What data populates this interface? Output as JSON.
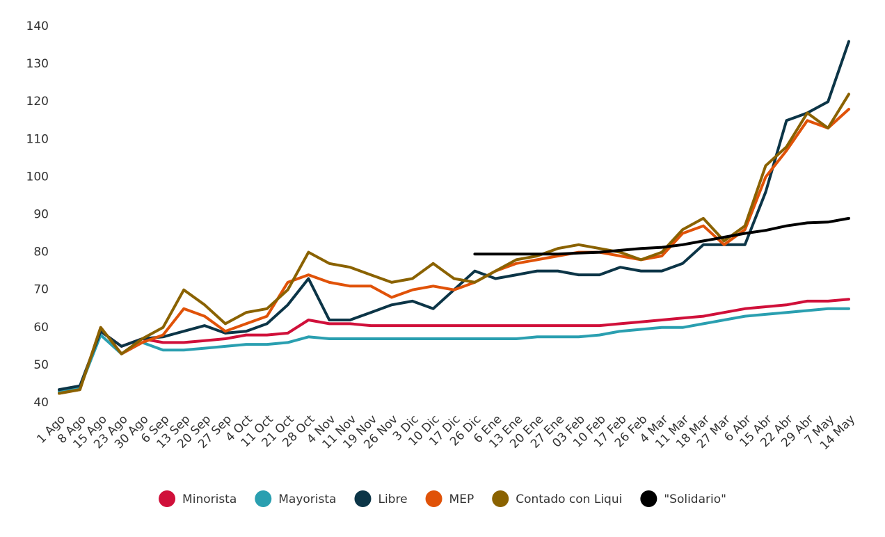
{
  "chart_data": {
    "type": "line",
    "categories": [
      "1 Ago",
      "8 Ago",
      "15 Ago",
      "23 Ago",
      "30 Ago",
      "6 Sep",
      "13 Sep",
      "20 Sep",
      "27 Sep",
      "4 Oct",
      "11 Oct",
      "21 Oct",
      "28 Oct",
      "4 Nov",
      "11 Nov",
      "19 Nov",
      "26 Nov",
      "3 Dic",
      "10 Dic",
      "17 Dic",
      "26 Dic",
      "6 Ene",
      "13 Ene",
      "20 Ene",
      "27 Ene",
      "03 Feb",
      "10 Feb",
      "17 Feb",
      "26 Feb",
      "4 Mar",
      "11 Mar",
      "18 Mar",
      "27 Mar",
      "6 Abr",
      "15 Abr",
      "22 Abr",
      "29 Abr",
      "7 May",
      "14 May"
    ],
    "series": [
      {
        "name": "Minorista",
        "color": "#d0103a",
        "values": [
          43,
          44,
          59,
          55,
          57,
          56,
          56,
          56.5,
          57,
          58,
          58,
          58.5,
          62,
          61,
          61,
          60.5,
          60.5,
          60.5,
          60.5,
          60.5,
          60.5,
          60.5,
          60.5,
          60.5,
          60.5,
          60.5,
          60.5,
          61,
          61.5,
          62,
          62.5,
          63,
          64,
          65,
          65.5,
          66,
          67,
          67,
          67.5
        ]
      },
      {
        "name": "Mayorista",
        "color": "#2a9fb0",
        "values": [
          43,
          44,
          58,
          53,
          56,
          54,
          54,
          54.5,
          55,
          55.5,
          55.5,
          56,
          57.5,
          57,
          57,
          57,
          57,
          57,
          57,
          57,
          57,
          57,
          57,
          57.5,
          57.5,
          57.5,
          58,
          59,
          59.5,
          60,
          60,
          61,
          62,
          63,
          63.5,
          64,
          64.5,
          65,
          65
        ]
      },
      {
        "name": "Libre",
        "color": "#0c3547",
        "values": [
          43.5,
          44.5,
          59,
          55,
          57,
          57.5,
          59,
          60.5,
          58.5,
          59,
          61,
          66,
          73,
          62,
          62,
          64,
          66,
          67,
          65,
          70,
          75,
          73,
          74,
          75,
          75,
          74,
          74,
          76,
          75,
          75,
          77,
          82,
          82,
          82,
          96,
          115,
          117,
          120,
          136
        ]
      },
      {
        "name": "MEP",
        "color": "#e05208",
        "values": [
          42.5,
          43.5,
          60,
          53,
          56,
          58,
          65,
          63,
          59,
          61,
          63,
          72,
          74,
          72,
          71,
          71,
          68,
          70,
          71,
          70,
          72,
          75,
          77,
          78,
          79,
          80,
          80,
          79,
          78,
          79,
          85,
          87,
          82,
          86,
          100,
          107,
          115,
          113,
          118
        ]
      },
      {
        "name": "Contado con Liqui",
        "color": "#8a6200",
        "values": [
          42.5,
          43.5,
          60,
          53,
          57,
          60,
          70,
          66,
          61,
          64,
          65,
          70,
          80,
          77,
          76,
          74,
          72,
          73,
          77,
          73,
          72,
          75,
          78,
          79,
          81,
          82,
          81,
          80,
          78,
          80,
          86,
          89,
          83,
          87,
          103,
          108,
          117,
          113,
          122
        ]
      },
      {
        "name": "\"Solidario\"",
        "color": "#000000",
        "values": [
          null,
          null,
          null,
          null,
          null,
          null,
          null,
          null,
          null,
          null,
          null,
          null,
          null,
          null,
          null,
          null,
          null,
          null,
          null,
          null,
          79.5,
          79.5,
          79.5,
          79.5,
          79.5,
          79.8,
          80,
          80.5,
          81,
          81.3,
          82,
          83,
          84,
          85,
          85.8,
          87,
          87.8,
          88,
          89
        ]
      }
    ],
    "ylim": [
      40,
      140
    ],
    "yticks": [
      40,
      50,
      60,
      70,
      80,
      90,
      100,
      110,
      120,
      130,
      140
    ],
    "grid": false
  }
}
